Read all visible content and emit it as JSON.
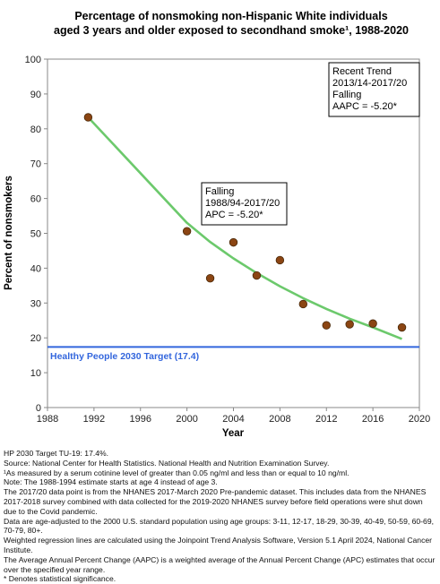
{
  "chart_data": {
    "type": "scatter",
    "title_lines": [
      "Percentage of nonsmoking non-Hispanic White individuals",
      "aged 3 years and older exposed to secondhand smoke¹, 1988-2020"
    ],
    "xlabel": "Year",
    "ylabel": "Percent of nonsmokers",
    "xlim": [
      1988,
      2020
    ],
    "ylim": [
      0,
      100
    ],
    "x_ticks": [
      1988,
      1992,
      1996,
      2000,
      2004,
      2008,
      2012,
      2016,
      2020
    ],
    "y_ticks": [
      0,
      10,
      20,
      30,
      40,
      50,
      60,
      70,
      80,
      90,
      100
    ],
    "grid": false,
    "points": {
      "x": [
        1991.5,
        2000,
        2002,
        2004,
        2006,
        2008,
        2010,
        2012,
        2014,
        2016,
        2018.5
      ],
      "y": [
        83.3,
        50.6,
        37.1,
        47.4,
        37.9,
        42.3,
        29.7,
        23.6,
        23.9,
        24.1,
        23.0
      ],
      "color": "#8B4513"
    },
    "trend": {
      "x": [
        1991.5,
        2000,
        2002,
        2004,
        2006,
        2008,
        2010,
        2012,
        2014,
        2016,
        2018.5
      ],
      "y": [
        83.3,
        53.0,
        47.5,
        42.8,
        38.6,
        34.8,
        31.4,
        28.3,
        25.5,
        23.0,
        19.7
      ],
      "color": "#6CC96C"
    },
    "target_line": {
      "value": 17.4,
      "label": "Healthy People 2030 Target (17.4)",
      "color": "#3366DD"
    },
    "annotations": [
      {
        "lines": [
          "Falling",
          "1988/94-2017/20",
          "APC = -5.20*"
        ]
      },
      {
        "lines": [
          "Recent Trend",
          "2013/14-2017/20",
          "Falling",
          "AAPC = -5.20*"
        ]
      }
    ]
  },
  "footnotes": [
    "HP 2030 Target TU-19: 17.4%.",
    "Source: National Center for Health Statistics. National Health and Nutrition Examination Survey.",
    "¹As measured by a serum cotinine level of greater than 0.05 ng/ml and less than or equal to 10 ng/ml.",
    "Note: The 1988-1994 estimate starts at age 4 instead of age 3.",
    "The 2017/20 data point is from the NHANES 2017-March 2020 Pre-pandemic dataset. This includes data from the NHANES 2017-2018 survey combined with data collected for the 2019-2020 NHANES survey before field operations were shut down due to the Covid pandemic.",
    "Data are age-adjusted to the 2000 U.S. standard population using age groups: 3-11, 12-17, 18-29, 30-39, 40-49, 50-59, 60-69, 70-79, 80+.",
    "Weighted regression lines are calculated using the Joinpoint Trend Analysis Software, Version 5.1 April 2024, National Cancer Institute.",
    "The Average Annual Percent Change (AAPC) is a weighted average of the Annual Percent Change (APC) estimates that occur over the specified year range.",
    "* Denotes statistical significance."
  ]
}
